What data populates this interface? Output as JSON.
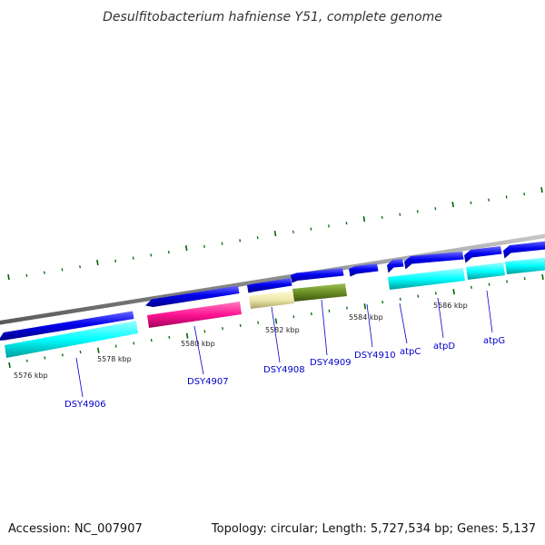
{
  "title": "Desulfitobacterium hafniense Y51, complete genome",
  "footer": {
    "accession": "Accession: NC_007907",
    "summary": "Topology: circular; Length: 5,727,534 bp; Genes: 5,137"
  },
  "colors": {
    "backbone": "#8c8c8c",
    "forward_strand": "#0000ee",
    "cds": "#00ffff",
    "label": "#0000cc",
    "tick": "#006600",
    "dsy4907_feature": "#ff1493",
    "dsy4908_feature": "#eee8aa",
    "dsy4909_feature": "#6b8e23"
  },
  "scale_labels": [
    "5576 kbp",
    "5578 kbp",
    "5580 kbp",
    "5582 kbp",
    "5584 kbp",
    "5586 kbp"
  ],
  "gene_labels": [
    "DSY4906",
    "DSY4907",
    "DSY4908",
    "DSY4909",
    "DSY4910",
    "atpC",
    "atpD",
    "atpG"
  ]
}
